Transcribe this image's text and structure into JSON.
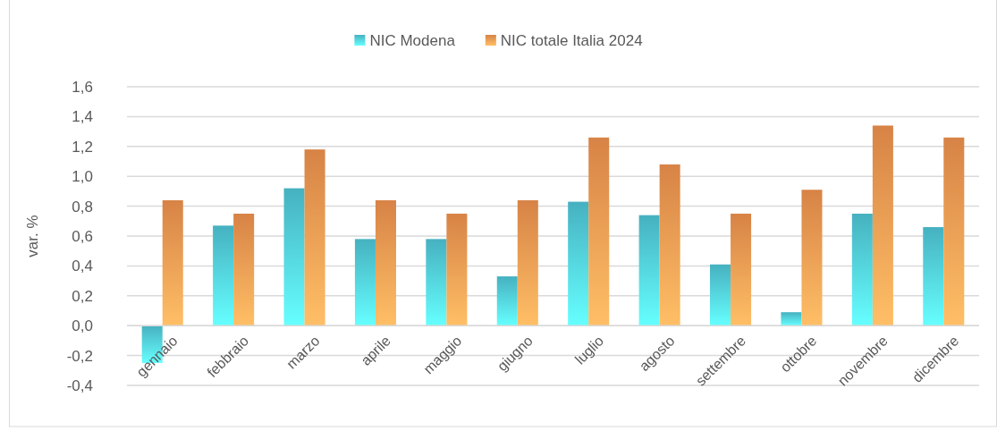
{
  "chart_data": {
    "type": "bar",
    "ylabel": "var. %",
    "categories": [
      "gennaio",
      "febbraio",
      "marzo",
      "aprile",
      "maggio",
      "giugno",
      "luglio",
      "agosto",
      "settembre",
      "ottobre",
      "novembre",
      "dicembre"
    ],
    "series": [
      {
        "name": "NIC Modena",
        "color": "#52d0e2",
        "values": [
          -0.25,
          0.67,
          0.92,
          0.58,
          0.58,
          0.33,
          0.83,
          0.74,
          0.41,
          0.09,
          0.75,
          0.66
        ]
      },
      {
        "name": "NIC totale Italia 2024",
        "color": "#fd9a52",
        "values": [
          0.84,
          0.75,
          1.18,
          0.84,
          0.75,
          0.84,
          1.26,
          1.08,
          0.75,
          0.91,
          1.34,
          1.26
        ]
      }
    ],
    "ylim": [
      -0.4,
      1.6
    ],
    "yticks": [
      {
        "value": -0.4,
        "label": "-0,4"
      },
      {
        "value": -0.2,
        "label": "-0,2"
      },
      {
        "value": 0,
        "label": "0,0"
      },
      {
        "value": 0.2,
        "label": "0,2"
      },
      {
        "value": 0.4,
        "label": "0,4"
      },
      {
        "value": 0.6,
        "label": "0,6"
      },
      {
        "value": 0.8,
        "label": "0,8"
      },
      {
        "value": 1.0,
        "label": "1,0"
      },
      {
        "value": 1.2,
        "label": "1,2"
      },
      {
        "value": 1.4,
        "label": "1,4"
      },
      {
        "value": 1.6,
        "label": "1,6"
      }
    ],
    "grid": "y",
    "legend": "top"
  }
}
